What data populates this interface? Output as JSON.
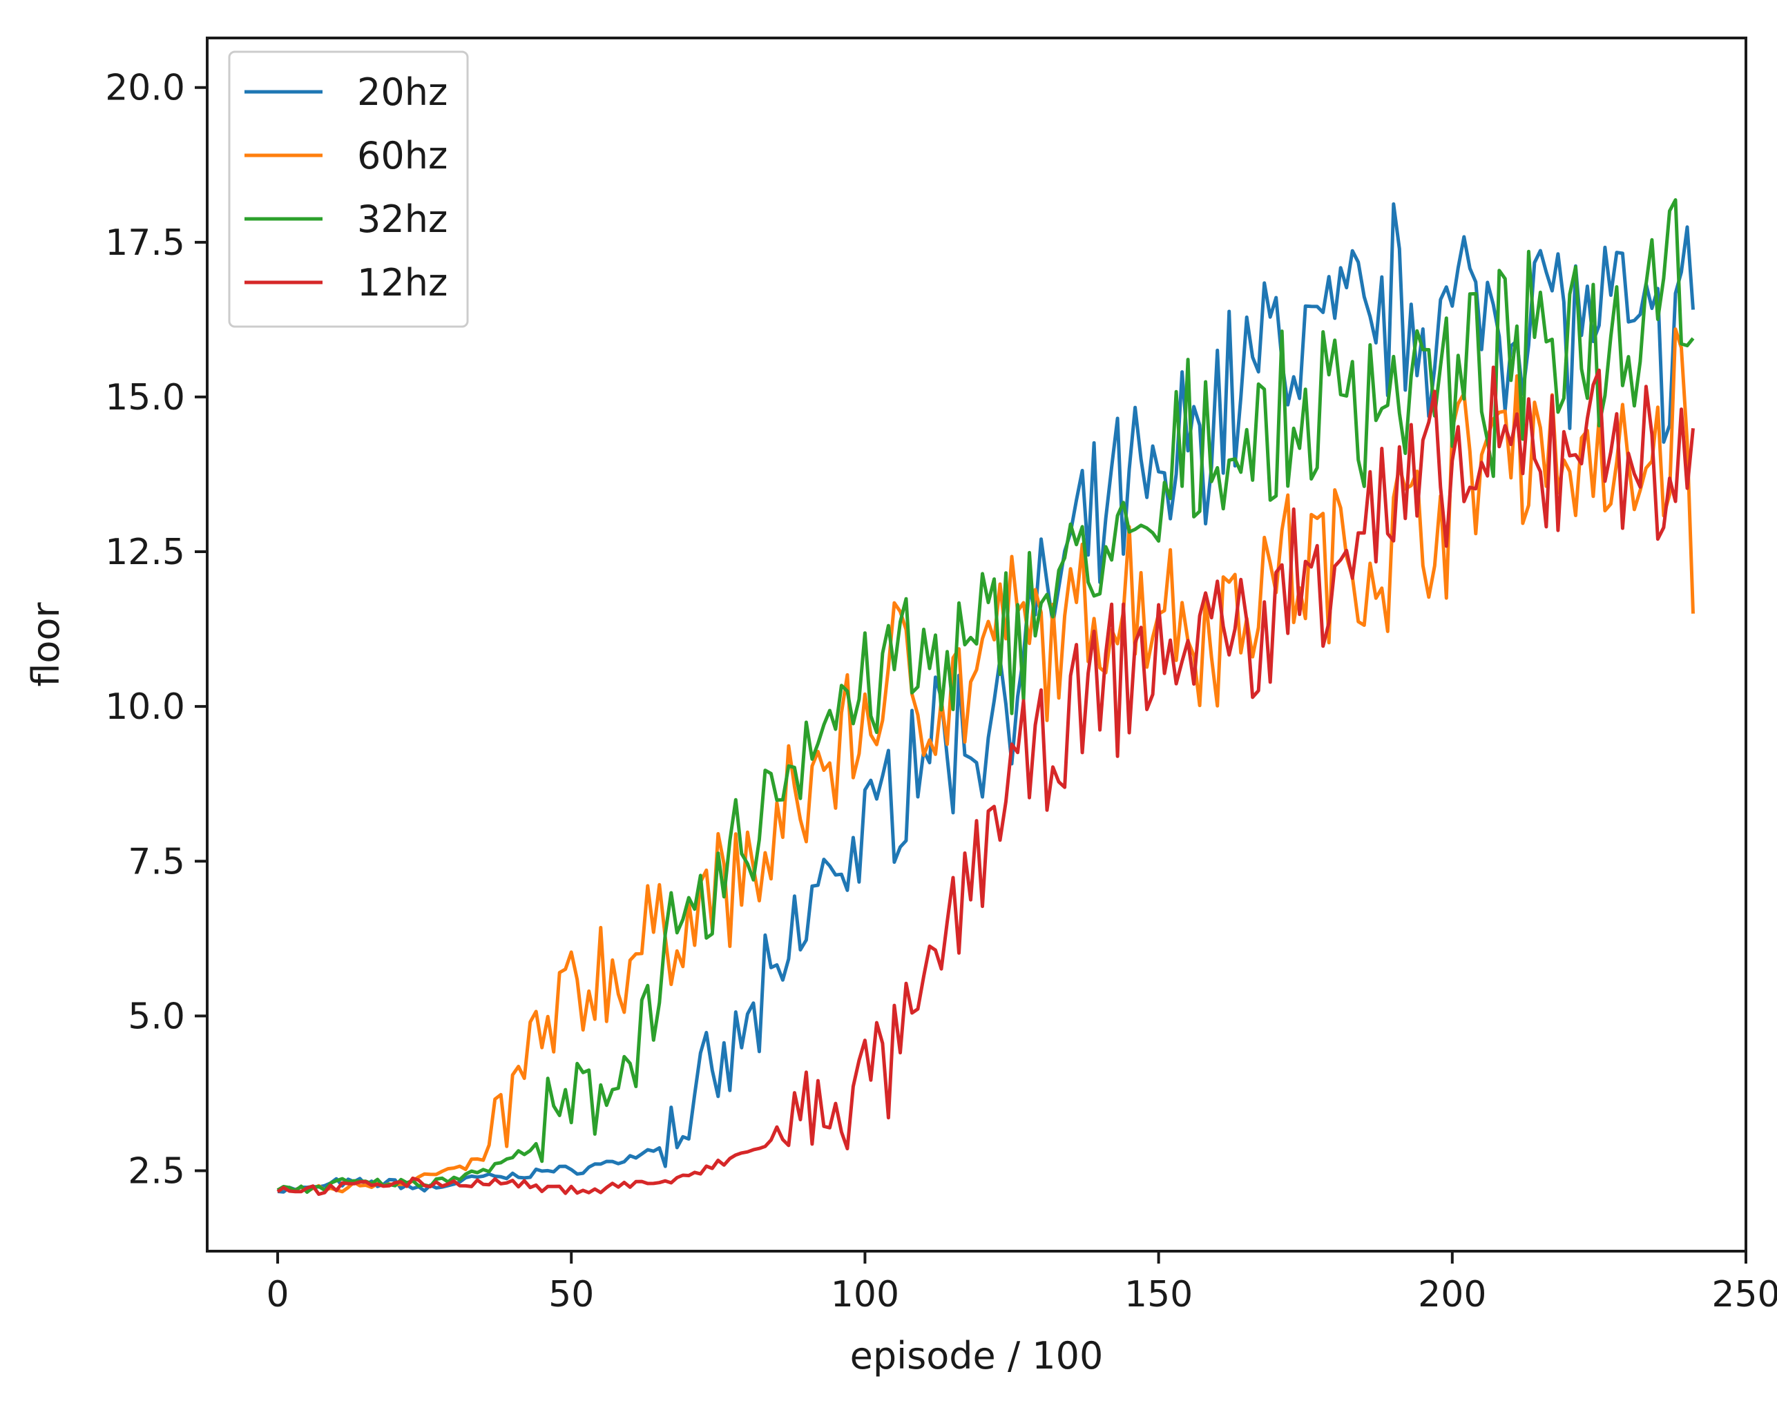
{
  "chart_data": {
    "type": "line",
    "title": "",
    "xlabel": "episode / 100",
    "ylabel": "floor",
    "xlim": [
      -12,
      250
    ],
    "ylim": [
      1.2,
      20.8
    ],
    "xticks": [
      0,
      50,
      100,
      150,
      200,
      250
    ],
    "xtick_labels": [
      "0",
      "50",
      "100",
      "150",
      "200",
      "250"
    ],
    "yticks": [
      2.5,
      5.0,
      7.5,
      10.0,
      12.5,
      15.0,
      17.5,
      20.0
    ],
    "ytick_labels": [
      "2.5",
      "5.0",
      "7.5",
      "10.0",
      "12.5",
      "15.0",
      "17.5",
      "20.0"
    ],
    "grid": false,
    "legend_position": "top-left",
    "series": [
      {
        "name": "20hz",
        "color": "#1f77b4",
        "x": [
          0,
          5,
          10,
          15,
          20,
          25,
          30,
          35,
          40,
          45,
          50,
          55,
          60,
          65,
          70,
          75,
          80,
          85,
          90,
          95,
          100,
          105,
          110,
          115,
          120,
          125,
          130,
          135,
          140,
          145,
          150,
          155,
          160,
          165,
          170,
          175,
          180,
          185,
          190,
          195,
          200,
          205,
          210,
          215,
          220,
          225,
          230,
          235,
          240,
          241
        ],
        "y": [
          2.2,
          2.2,
          2.3,
          2.3,
          2.3,
          2.2,
          2.3,
          2.4,
          2.4,
          2.5,
          2.5,
          2.6,
          2.7,
          2.9,
          3.4,
          3.9,
          4.8,
          5.4,
          6.6,
          7.6,
          7.7,
          8.7,
          9.7,
          9.4,
          9.6,
          10.6,
          11.4,
          12.3,
          12.8,
          13.6,
          13.2,
          14.3,
          14.8,
          15.4,
          15.8,
          16.0,
          16.0,
          16.1,
          16.5,
          16.5,
          16.1,
          16.6,
          16.4,
          16.9,
          16.1,
          16.3,
          16.0,
          15.6,
          16.4,
          17.1
        ]
      },
      {
        "name": "60hz",
        "color": "#ff7f0e",
        "x": [
          0,
          5,
          10,
          15,
          20,
          25,
          30,
          35,
          40,
          45,
          50,
          55,
          60,
          65,
          70,
          75,
          80,
          85,
          90,
          95,
          100,
          105,
          110,
          115,
          120,
          125,
          130,
          135,
          140,
          145,
          150,
          155,
          160,
          165,
          170,
          175,
          180,
          185,
          190,
          195,
          200,
          205,
          210,
          215,
          220,
          225,
          230,
          235,
          240,
          241
        ],
        "y": [
          2.2,
          2.2,
          2.2,
          2.3,
          2.3,
          2.4,
          2.5,
          2.7,
          3.7,
          4.6,
          5.3,
          5.7,
          5.9,
          6.2,
          6.8,
          7.0,
          7.2,
          7.8,
          8.6,
          9.3,
          9.8,
          10.6,
          10.4,
          10.1,
          10.6,
          11.3,
          11.0,
          11.1,
          11.6,
          11.9,
          11.8,
          11.4,
          11.3,
          11.9,
          12.2,
          12.3,
          12.3,
          12.4,
          12.7,
          13.1,
          13.5,
          14.1,
          14.6,
          14.3,
          14.1,
          13.6,
          13.6,
          14.2,
          15.2,
          11.1
        ]
      },
      {
        "name": "32hz",
        "color": "#2ca02c",
        "x": [
          0,
          5,
          10,
          15,
          20,
          25,
          30,
          35,
          40,
          45,
          50,
          55,
          60,
          65,
          70,
          75,
          80,
          85,
          90,
          95,
          100,
          105,
          110,
          115,
          120,
          125,
          130,
          135,
          140,
          145,
          150,
          155,
          160,
          165,
          170,
          175,
          180,
          185,
          190,
          195,
          200,
          205,
          210,
          215,
          220,
          225,
          230,
          235,
          240,
          241
        ],
        "y": [
          2.2,
          2.2,
          2.3,
          2.3,
          2.3,
          2.3,
          2.4,
          2.5,
          2.7,
          3.0,
          3.4,
          3.7,
          4.6,
          5.6,
          6.3,
          6.9,
          7.9,
          8.7,
          9.5,
          10.0,
          10.3,
          10.7,
          10.6,
          10.4,
          11.1,
          11.3,
          11.9,
          12.1,
          12.4,
          12.3,
          12.9,
          14.1,
          14.4,
          14.3,
          14.2,
          14.6,
          15.1,
          15.1,
          15.2,
          15.4,
          14.9,
          15.3,
          15.5,
          15.6,
          16.4,
          16.0,
          16.1,
          17.6,
          17.0,
          15.8
        ]
      },
      {
        "name": "12hz",
        "color": "#d62728",
        "x": [
          0,
          5,
          10,
          15,
          20,
          25,
          30,
          35,
          40,
          45,
          50,
          55,
          60,
          65,
          70,
          75,
          80,
          85,
          90,
          95,
          100,
          105,
          110,
          115,
          120,
          125,
          130,
          135,
          140,
          145,
          150,
          155,
          160,
          165,
          170,
          175,
          180,
          185,
          190,
          195,
          200,
          205,
          210,
          215,
          220,
          225,
          230,
          235,
          240,
          241
        ],
        "y": [
          2.2,
          2.2,
          2.2,
          2.3,
          2.3,
          2.3,
          2.3,
          2.3,
          2.3,
          2.2,
          2.2,
          2.2,
          2.3,
          2.3,
          2.4,
          2.6,
          2.8,
          3.0,
          3.3,
          3.5,
          3.9,
          4.3,
          5.2,
          6.5,
          7.9,
          8.9,
          9.0,
          9.6,
          10.3,
          10.6,
          10.8,
          11.0,
          11.3,
          11.1,
          11.4,
          12.2,
          12.6,
          12.9,
          13.2,
          13.5,
          13.6,
          13.8,
          13.9,
          14.0,
          14.3,
          14.6,
          14.4,
          13.2,
          14.1,
          15.0
        ]
      }
    ]
  }
}
